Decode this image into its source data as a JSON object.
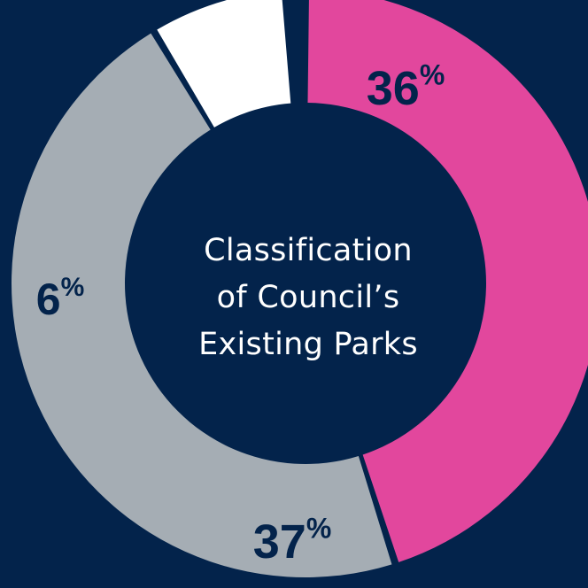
{
  "colors": {
    "background": "#03234b",
    "pink": "#e2479d",
    "grey": "#a5adb4",
    "white": "#ffffff",
    "label_dark": "#03234b"
  },
  "chart_data": {
    "type": "pie",
    "title": "Classification of Council’s Existing Parks",
    "title_lines": [
      "Classification",
      "of Council’s",
      "Existing Parks"
    ],
    "segments": [
      {
        "value": 36,
        "label": "36%",
        "color": "#e2479d"
      },
      {
        "value": 37,
        "label": "37%",
        "color": "#a5adb4"
      },
      {
        "value": 6,
        "label": "6%",
        "color": "#ffffff"
      }
    ],
    "unit": "%"
  }
}
